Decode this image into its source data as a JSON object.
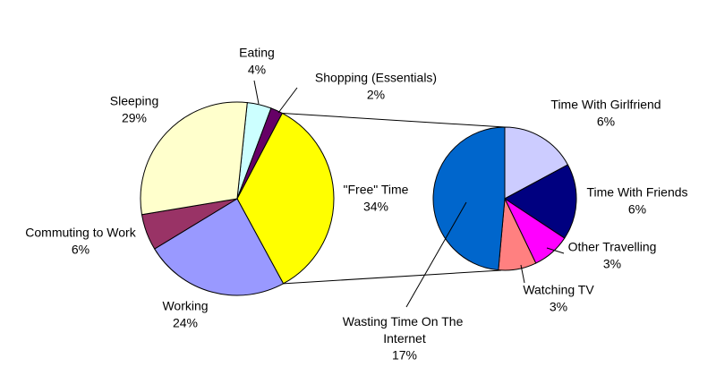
{
  "chart_data": [
    {
      "type": "pie",
      "categories": [
        "Eating",
        "Shopping (Essentials)",
        "\"Free\" Time",
        "Working",
        "Commuting to Work",
        "Sleeping"
      ],
      "values": [
        4,
        2,
        34,
        24,
        6,
        29
      ],
      "value_labels": [
        "4%",
        "2%",
        "34%",
        "24%",
        "6%",
        "29%"
      ],
      "colors": [
        "#ccffff",
        "#660066",
        "#ffff00",
        "#9999ff",
        "#993366",
        "#ffffcc"
      ]
    },
    {
      "type": "pie",
      "categories": [
        "Time With Girlfriend",
        "Time With Friends",
        "Other Travelling",
        "Watching TV",
        "Wasting Time On The Internet"
      ],
      "values": [
        6,
        6,
        3,
        3,
        17
      ],
      "value_labels": [
        "6%",
        "6%",
        "3%",
        "3%",
        "17%"
      ],
      "colors": [
        "#ccccff",
        "#000080",
        "#ff00ff",
        "#ff8080",
        "#0066cc"
      ]
    }
  ]
}
